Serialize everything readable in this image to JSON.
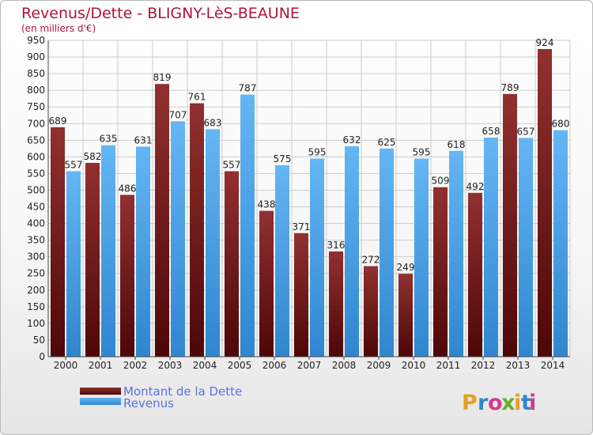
{
  "chart_data": {
    "type": "bar",
    "title": "Revenus/Dette - BLIGNY-LèS-BEAUNE",
    "subtitle": "(en milliers d'€)",
    "categories": [
      "2000",
      "2001",
      "2002",
      "2003",
      "2004",
      "2005",
      "2006",
      "2007",
      "2008",
      "2009",
      "2010",
      "2011",
      "2012",
      "2013",
      "2014"
    ],
    "series": [
      {
        "name": "Montant de la Dette",
        "values": [
          689,
          582,
          486,
          819,
          761,
          557,
          438,
          371,
          316,
          272,
          249,
          509,
          492,
          789,
          924
        ]
      },
      {
        "name": "Revenus",
        "values": [
          557,
          635,
          631,
          707,
          683,
          787,
          575,
          595,
          632,
          625,
          595,
          618,
          658,
          657,
          680
        ]
      }
    ],
    "ylim": [
      0,
      950
    ],
    "ytick_step": 50,
    "grid": true,
    "legend_position": "bottom-left",
    "colors": {
      "dette": "#8a1c1c",
      "dette_dark": "#4d0707",
      "revenus": "#5aaef0",
      "revenus_dark": "#2f86cf",
      "grid": "#cccccc",
      "title": "#b0143a"
    }
  },
  "branding": {
    "logo_letters": [
      "P",
      "r",
      "o",
      "x",
      "i",
      "t",
      "i"
    ],
    "logo_colors": [
      "#e8a020",
      "#2f86cf",
      "#d63a8a",
      "#6aae2a",
      "#e8a020",
      "#2f86cf",
      "#d63a8a"
    ]
  }
}
